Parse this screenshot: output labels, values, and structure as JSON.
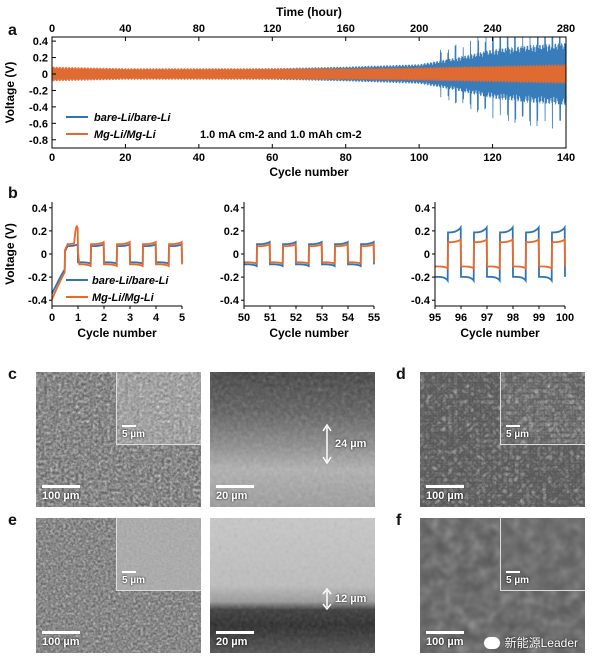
{
  "panels": {
    "a": "a",
    "b": "b",
    "c": "c",
    "d": "d",
    "e": "e",
    "f": "f"
  },
  "colors": {
    "bare": "#2e75b6",
    "mg": "#e8692a"
  },
  "chart_data": [
    {
      "id": "a",
      "type": "line",
      "title": "",
      "top_axis": {
        "label": "Time (hour)",
        "ticks": [
          "0",
          "40",
          "80",
          "120",
          "160",
          "200",
          "240",
          "280"
        ],
        "range": [
          0,
          280
        ]
      },
      "xlabel": "Cycle number",
      "ylabel": "Voltage (V)",
      "xlim": [
        0,
        140
      ],
      "ylim": [
        -0.9,
        0.45
      ],
      "xticks": [
        "0",
        "20",
        "40",
        "60",
        "80",
        "100",
        "120",
        "140"
      ],
      "yticks": [
        "0.4",
        "0.2",
        "0",
        "-0.2",
        "-0.4",
        "-0.6",
        "-0.8"
      ],
      "legend": {
        "placement": "bottom-left"
      },
      "annotation": "1.0 mA cm-2 and 1.0 mAh cm-2",
      "series": [
        {
          "name": "bare-Li/bare-Li",
          "color": "#2e75b6",
          "envelope_x": [
            0,
            20,
            40,
            60,
            80,
            100,
            110,
            120,
            130,
            140
          ],
          "envelope_amp": [
            0.07,
            0.06,
            0.06,
            0.07,
            0.09,
            0.12,
            0.2,
            0.3,
            0.35,
            0.38
          ]
        },
        {
          "name": "Mg-Li/Mg-Li",
          "color": "#e8692a",
          "envelope_x": [
            0,
            20,
            40,
            60,
            80,
            100,
            120,
            140
          ],
          "envelope_amp": [
            0.09,
            0.07,
            0.07,
            0.07,
            0.07,
            0.08,
            0.1,
            0.12
          ]
        }
      ]
    },
    {
      "id": "b1",
      "type": "line",
      "xlabel": "Cycle number",
      "ylabel": "Voltage (V)",
      "xlim": [
        0,
        5
      ],
      "ylim": [
        -0.45,
        0.45
      ],
      "xticks": [
        "0",
        "1",
        "2",
        "3",
        "4",
        "5"
      ],
      "yticks": [
        "0.4",
        "0.2",
        "0",
        "-0.2",
        "-0.4"
      ],
      "legend": {
        "placement": "bottom-right"
      },
      "series": [
        {
          "name": "bare-Li/bare-Li",
          "color": "#2e75b6",
          "amp": 0.08
        },
        {
          "name": "Mg-Li/Mg-Li",
          "color": "#e8692a",
          "amp": 0.1
        }
      ]
    },
    {
      "id": "b2",
      "type": "line",
      "xlabel": "Cycle number",
      "xlim": [
        50,
        55
      ],
      "ylim": [
        -0.45,
        0.45
      ],
      "xticks": [
        "50",
        "51",
        "52",
        "53",
        "54",
        "55"
      ],
      "yticks": [
        "0.4",
        "0.2",
        "0",
        "-0.2",
        "-0.4"
      ],
      "series": [
        {
          "color": "#2e75b6",
          "amp": 0.1
        },
        {
          "color": "#e8692a",
          "amp": 0.08
        }
      ]
    },
    {
      "id": "b3",
      "type": "line",
      "xlabel": "Cycle number",
      "xlim": [
        95,
        100
      ],
      "ylim": [
        -0.45,
        0.45
      ],
      "xticks": [
        "95",
        "96",
        "97",
        "98",
        "99",
        "100"
      ],
      "yticks": [
        "0.4",
        "0.2",
        "0",
        "-0.2",
        "-0.4"
      ],
      "series": [
        {
          "color": "#2e75b6",
          "amp": 0.22
        },
        {
          "color": "#e8692a",
          "amp": 0.12
        }
      ]
    }
  ],
  "sem": {
    "c_top": {
      "scale": "100 µm",
      "inset_scale": "5 µm"
    },
    "c_cross": {
      "scale": "20 µm",
      "thickness": "24 µm"
    },
    "d_top": {
      "scale": "100 µm",
      "inset_scale": "5 µm"
    },
    "e_top": {
      "scale": "100 µm",
      "inset_scale": "5 µm"
    },
    "e_cross": {
      "scale": "20 µm",
      "thickness": "12 µm"
    },
    "f_top": {
      "scale": "100 µm",
      "inset_scale": "5 µm"
    }
  },
  "watermark": "新能源Leader"
}
